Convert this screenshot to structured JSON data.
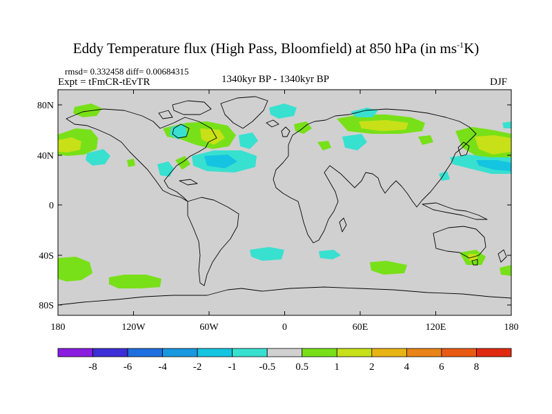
{
  "figure": {
    "title_main": "Eddy Temperature flux (High Pass, Bloomfield) at 850 hPa (in ms",
    "title_sup": "-1",
    "title_end": "K)",
    "stats": "rmsd= 0.332458  diff= 0.00684315",
    "experiment": "Expt = tFmCR-tEvTR",
    "period": "1340kyr BP - 1340kyr BP",
    "season": "DJF"
  },
  "axes": {
    "y_ticks": [
      "80N",
      "40N",
      "0",
      "40S",
      "80S"
    ],
    "x_ticks": [
      "180",
      "120W",
      "60W",
      "0",
      "60E",
      "120E",
      "180"
    ]
  },
  "colorbar": {
    "labels": [
      "-8",
      "-6",
      "-4",
      "-2",
      "-1",
      "-0.5",
      "0.5",
      "1",
      "2",
      "4",
      "6",
      "8"
    ],
    "colors": [
      "#8a1de0",
      "#3c2fd8",
      "#1f6fe0",
      "#1798e0",
      "#14c4e0",
      "#38e0d0",
      "#d0d0d0",
      "#78e018",
      "#c8e018",
      "#e8b414",
      "#e88418",
      "#e85a14",
      "#e02a10"
    ]
  },
  "colors": {
    "land_sea_bg": "#d0d0d0",
    "positive_weak": "#78e018",
    "positive_mid": "#c8e018",
    "negative_weak": "#38e0d0",
    "negative_mid": "#14c4e0"
  }
}
